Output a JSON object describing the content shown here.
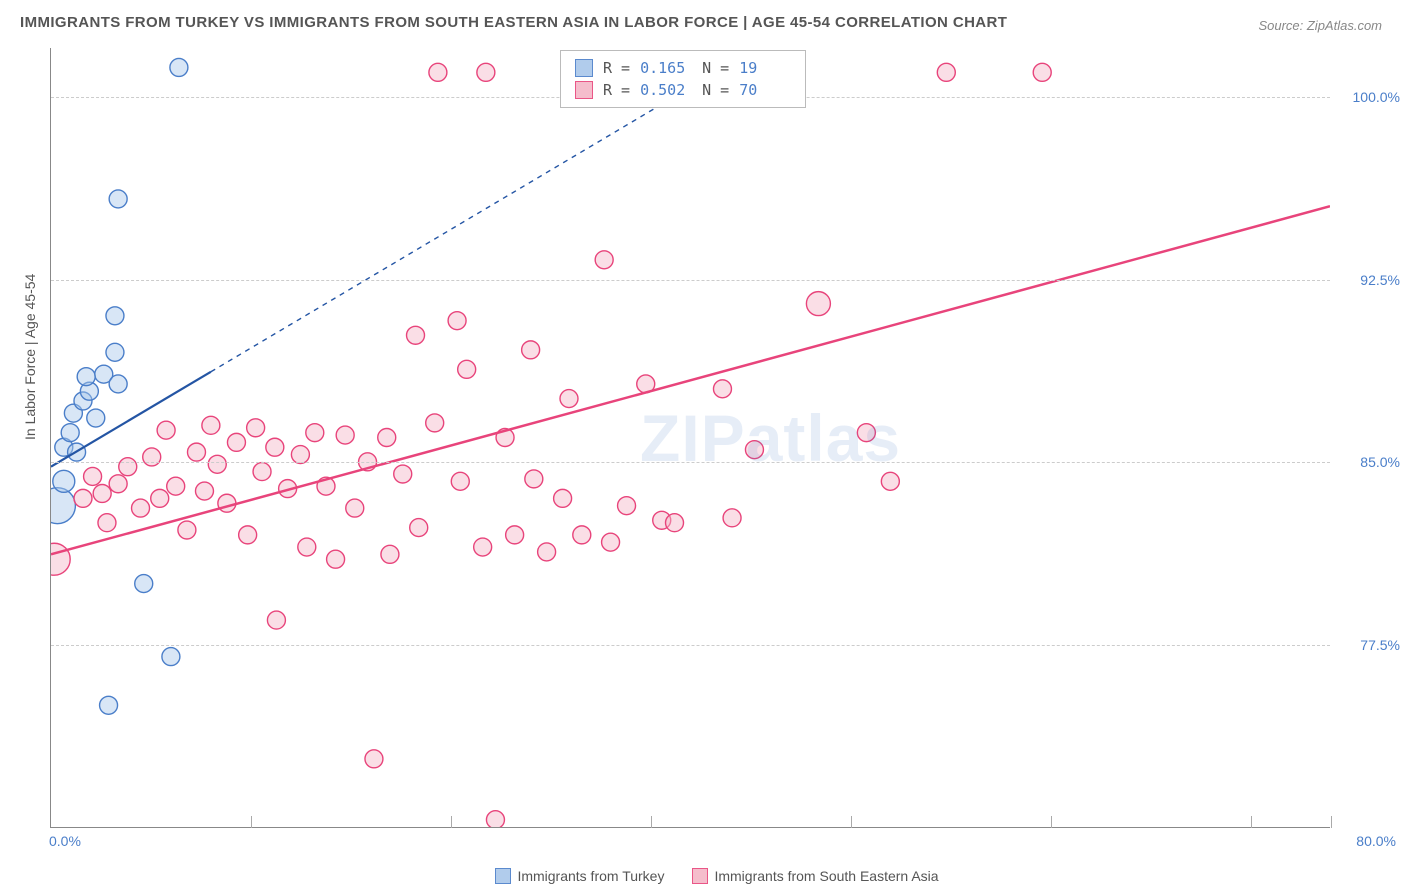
{
  "title": "IMMIGRANTS FROM TURKEY VS IMMIGRANTS FROM SOUTH EASTERN ASIA IN LABOR FORCE | AGE 45-54 CORRELATION CHART",
  "source": "Source: ZipAtlas.com",
  "watermark_zip": "ZIP",
  "watermark_atlas": "atlas",
  "ylabel": "In Labor Force | Age 45-54",
  "chart": {
    "type": "scatter",
    "background_color": "#ffffff",
    "grid_color": "#cccccc",
    "axis_color": "#888888",
    "tick_color": "#4a7ec9",
    "xlim": [
      0,
      80
    ],
    "ylim": [
      70,
      102
    ],
    "xtick_first": "0.0%",
    "xtick_last": "80.0%",
    "xtick_minor_positions": [
      12.5,
      25,
      37.5,
      50,
      62.5,
      75
    ],
    "yticks": [
      {
        "v": 77.5,
        "label": "77.5%"
      },
      {
        "v": 85.0,
        "label": "85.0%"
      },
      {
        "v": 92.5,
        "label": "92.5%"
      },
      {
        "v": 100.0,
        "label": "100.0%"
      }
    ]
  },
  "series": [
    {
      "id": "turkey",
      "label": "Immigrants from Turkey",
      "fill": "#a9c7ea",
      "stroke": "#4a7ec9",
      "fill_opacity": 0.45,
      "marker_r": 9,
      "trend_stroke": "#2455a4",
      "trend_width": 2.2,
      "trend_solid": {
        "x1": 0,
        "y1": 84.8,
        "x2": 10,
        "y2": 88.7
      },
      "trend_dashed": {
        "x1": 10,
        "y1": 88.7,
        "x2": 39,
        "y2": 100
      },
      "stats": {
        "R": "0.165",
        "N": "19"
      },
      "points": [
        {
          "x": 0.4,
          "y": 83.2,
          "r": 18
        },
        {
          "x": 0.8,
          "y": 84.2,
          "r": 11
        },
        {
          "x": 0.8,
          "y": 85.6,
          "r": 9
        },
        {
          "x": 1.2,
          "y": 86.2,
          "r": 9
        },
        {
          "x": 1.4,
          "y": 87.0,
          "r": 9
        },
        {
          "x": 1.6,
          "y": 85.4,
          "r": 9
        },
        {
          "x": 2.0,
          "y": 87.5,
          "r": 9
        },
        {
          "x": 2.4,
          "y": 87.9,
          "r": 9
        },
        {
          "x": 3.3,
          "y": 88.6,
          "r": 9
        },
        {
          "x": 4.0,
          "y": 89.5,
          "r": 9
        },
        {
          "x": 4.2,
          "y": 88.2,
          "r": 9
        },
        {
          "x": 4.0,
          "y": 91.0,
          "r": 9
        },
        {
          "x": 4.2,
          "y": 95.8,
          "r": 9
        },
        {
          "x": 8.0,
          "y": 101.2,
          "r": 9
        },
        {
          "x": 5.8,
          "y": 80.0,
          "r": 9
        },
        {
          "x": 3.6,
          "y": 75.0,
          "r": 9
        },
        {
          "x": 7.5,
          "y": 77.0,
          "r": 9
        },
        {
          "x": 2.2,
          "y": 88.5,
          "r": 9
        },
        {
          "x": 2.8,
          "y": 86.8,
          "r": 9
        }
      ]
    },
    {
      "id": "sea",
      "label": "Immigrants from South Eastern Asia",
      "fill": "#f4b6c7",
      "stroke": "#e8447b",
      "fill_opacity": 0.45,
      "marker_r": 9,
      "trend_stroke": "#e8447b",
      "trend_width": 2.5,
      "trend_solid": {
        "x1": 0,
        "y1": 81.2,
        "x2": 80,
        "y2": 95.5
      },
      "stats": {
        "R": "0.502",
        "N": "70"
      },
      "points": [
        {
          "x": 0.2,
          "y": 81.0,
          "r": 16
        },
        {
          "x": 2.0,
          "y": 83.5
        },
        {
          "x": 2.6,
          "y": 84.4
        },
        {
          "x": 3.2,
          "y": 83.7
        },
        {
          "x": 3.5,
          "y": 82.5
        },
        {
          "x": 4.2,
          "y": 84.1
        },
        {
          "x": 4.8,
          "y": 84.8
        },
        {
          "x": 5.6,
          "y": 83.1
        },
        {
          "x": 6.3,
          "y": 85.2
        },
        {
          "x": 6.8,
          "y": 83.5
        },
        {
          "x": 7.2,
          "y": 86.3
        },
        {
          "x": 7.8,
          "y": 84.0
        },
        {
          "x": 8.5,
          "y": 82.2
        },
        {
          "x": 9.1,
          "y": 85.4
        },
        {
          "x": 9.6,
          "y": 83.8
        },
        {
          "x": 10.0,
          "y": 86.5
        },
        {
          "x": 10.4,
          "y": 84.9
        },
        {
          "x": 11.0,
          "y": 83.3
        },
        {
          "x": 11.6,
          "y": 85.8
        },
        {
          "x": 12.3,
          "y": 82.0
        },
        {
          "x": 12.8,
          "y": 86.4
        },
        {
          "x": 13.2,
          "y": 84.6
        },
        {
          "x": 14.0,
          "y": 85.6
        },
        {
          "x": 14.1,
          "y": 78.5
        },
        {
          "x": 14.8,
          "y": 83.9
        },
        {
          "x": 15.6,
          "y": 85.3
        },
        {
          "x": 16.0,
          "y": 81.5
        },
        {
          "x": 16.5,
          "y": 86.2
        },
        {
          "x": 17.2,
          "y": 84.0
        },
        {
          "x": 17.8,
          "y": 81.0
        },
        {
          "x": 18.4,
          "y": 86.1
        },
        {
          "x": 19.0,
          "y": 83.1
        },
        {
          "x": 19.8,
          "y": 85.0
        },
        {
          "x": 20.2,
          "y": 72.8
        },
        {
          "x": 21.0,
          "y": 86.0
        },
        {
          "x": 21.2,
          "y": 81.2
        },
        {
          "x": 22.0,
          "y": 84.5
        },
        {
          "x": 22.8,
          "y": 90.2
        },
        {
          "x": 23.0,
          "y": 82.3
        },
        {
          "x": 24.0,
          "y": 86.6
        },
        {
          "x": 24.2,
          "y": 101.0
        },
        {
          "x": 25.4,
          "y": 90.8
        },
        {
          "x": 25.6,
          "y": 84.2
        },
        {
          "x": 26.0,
          "y": 88.8
        },
        {
          "x": 27.0,
          "y": 81.5
        },
        {
          "x": 27.2,
          "y": 101.0
        },
        {
          "x": 27.8,
          "y": 70.3
        },
        {
          "x": 28.4,
          "y": 86.0
        },
        {
          "x": 29.0,
          "y": 82.0
        },
        {
          "x": 30.0,
          "y": 89.6
        },
        {
          "x": 30.2,
          "y": 84.3
        },
        {
          "x": 31.0,
          "y": 81.3
        },
        {
          "x": 32.0,
          "y": 83.5
        },
        {
          "x": 32.4,
          "y": 87.6
        },
        {
          "x": 33.2,
          "y": 82.0
        },
        {
          "x": 34.6,
          "y": 93.3
        },
        {
          "x": 35.0,
          "y": 81.7
        },
        {
          "x": 36.0,
          "y": 83.2
        },
        {
          "x": 36.0,
          "y": 101.0
        },
        {
          "x": 37.2,
          "y": 88.2
        },
        {
          "x": 38.2,
          "y": 82.6
        },
        {
          "x": 39.0,
          "y": 82.5
        },
        {
          "x": 42.0,
          "y": 88.0
        },
        {
          "x": 42.6,
          "y": 82.7
        },
        {
          "x": 44.0,
          "y": 85.5
        },
        {
          "x": 48.0,
          "y": 91.5,
          "r": 12
        },
        {
          "x": 51.0,
          "y": 86.2
        },
        {
          "x": 56.0,
          "y": 101.0
        },
        {
          "x": 62.0,
          "y": 101.0
        },
        {
          "x": 52.5,
          "y": 84.2
        }
      ]
    }
  ],
  "legend_bottom": [
    {
      "series": "turkey"
    },
    {
      "series": "sea"
    }
  ]
}
